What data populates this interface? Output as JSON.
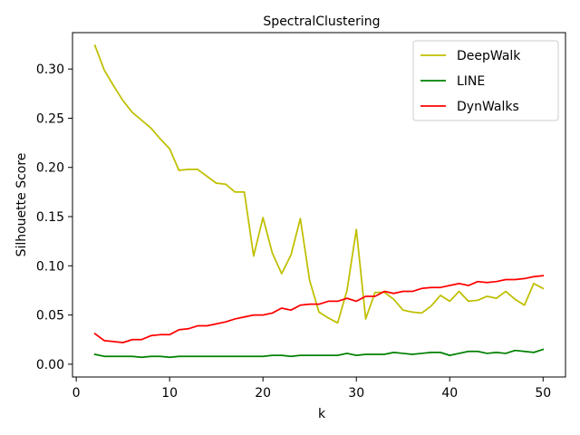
{
  "chart_data": {
    "type": "line",
    "title": "SpectralClustering",
    "xlabel": "k",
    "ylabel": "Silhouette Score",
    "xlim": [
      -0.4,
      52.4
    ],
    "ylim": [
      -0.013,
      0.337
    ],
    "xticks": [
      0,
      10,
      20,
      30,
      40,
      50
    ],
    "xtick_labels": [
      "0",
      "10",
      "20",
      "30",
      "40",
      "50"
    ],
    "yticks": [
      0.0,
      0.05,
      0.1,
      0.15,
      0.2,
      0.25,
      0.3
    ],
    "ytick_labels": [
      "0.00",
      "0.05",
      "0.10",
      "0.15",
      "0.20",
      "0.25",
      "0.30"
    ],
    "legend_position": "top-right",
    "grid": false,
    "x": [
      2,
      3,
      4,
      5,
      6,
      7,
      8,
      9,
      10,
      11,
      12,
      13,
      14,
      15,
      16,
      17,
      18,
      19,
      20,
      21,
      22,
      23,
      24,
      25,
      26,
      27,
      28,
      29,
      30,
      31,
      32,
      33,
      34,
      35,
      36,
      37,
      38,
      39,
      40,
      41,
      42,
      43,
      44,
      45,
      46,
      47,
      48,
      49,
      50
    ],
    "series": [
      {
        "name": "DeepWalk",
        "color": "#bfbf00",
        "values": [
          0.324,
          0.299,
          0.283,
          0.268,
          0.256,
          0.248,
          0.24,
          0.229,
          0.219,
          0.197,
          0.198,
          0.198,
          0.191,
          0.184,
          0.183,
          0.175,
          0.175,
          0.11,
          0.149,
          0.113,
          0.092,
          0.111,
          0.148,
          0.085,
          0.053,
          0.047,
          0.042,
          0.075,
          0.137,
          0.046,
          0.073,
          0.073,
          0.066,
          0.055,
          0.053,
          0.052,
          0.059,
          0.07,
          0.064,
          0.074,
          0.064,
          0.065,
          0.069,
          0.067,
          0.074,
          0.066,
          0.06,
          0.082,
          0.077
        ]
      },
      {
        "name": "LINE",
        "color": "#008000",
        "values": [
          0.01,
          0.008,
          0.008,
          0.008,
          0.008,
          0.007,
          0.008,
          0.008,
          0.007,
          0.008,
          0.008,
          0.008,
          0.008,
          0.008,
          0.008,
          0.008,
          0.008,
          0.008,
          0.008,
          0.009,
          0.009,
          0.008,
          0.009,
          0.009,
          0.009,
          0.009,
          0.009,
          0.011,
          0.009,
          0.01,
          0.01,
          0.01,
          0.012,
          0.011,
          0.01,
          0.011,
          0.012,
          0.012,
          0.009,
          0.011,
          0.013,
          0.013,
          0.011,
          0.012,
          0.011,
          0.014,
          0.013,
          0.012,
          0.015
        ]
      },
      {
        "name": "DynWalks",
        "color": "#ff0000",
        "values": [
          0.031,
          0.024,
          0.023,
          0.022,
          0.025,
          0.025,
          0.029,
          0.03,
          0.03,
          0.035,
          0.036,
          0.039,
          0.039,
          0.041,
          0.043,
          0.046,
          0.048,
          0.05,
          0.05,
          0.052,
          0.057,
          0.055,
          0.06,
          0.061,
          0.061,
          0.064,
          0.064,
          0.067,
          0.064,
          0.069,
          0.069,
          0.074,
          0.072,
          0.074,
          0.074,
          0.077,
          0.078,
          0.078,
          0.08,
          0.082,
          0.08,
          0.084,
          0.083,
          0.084,
          0.086,
          0.086,
          0.087,
          0.089,
          0.09
        ]
      }
    ]
  }
}
